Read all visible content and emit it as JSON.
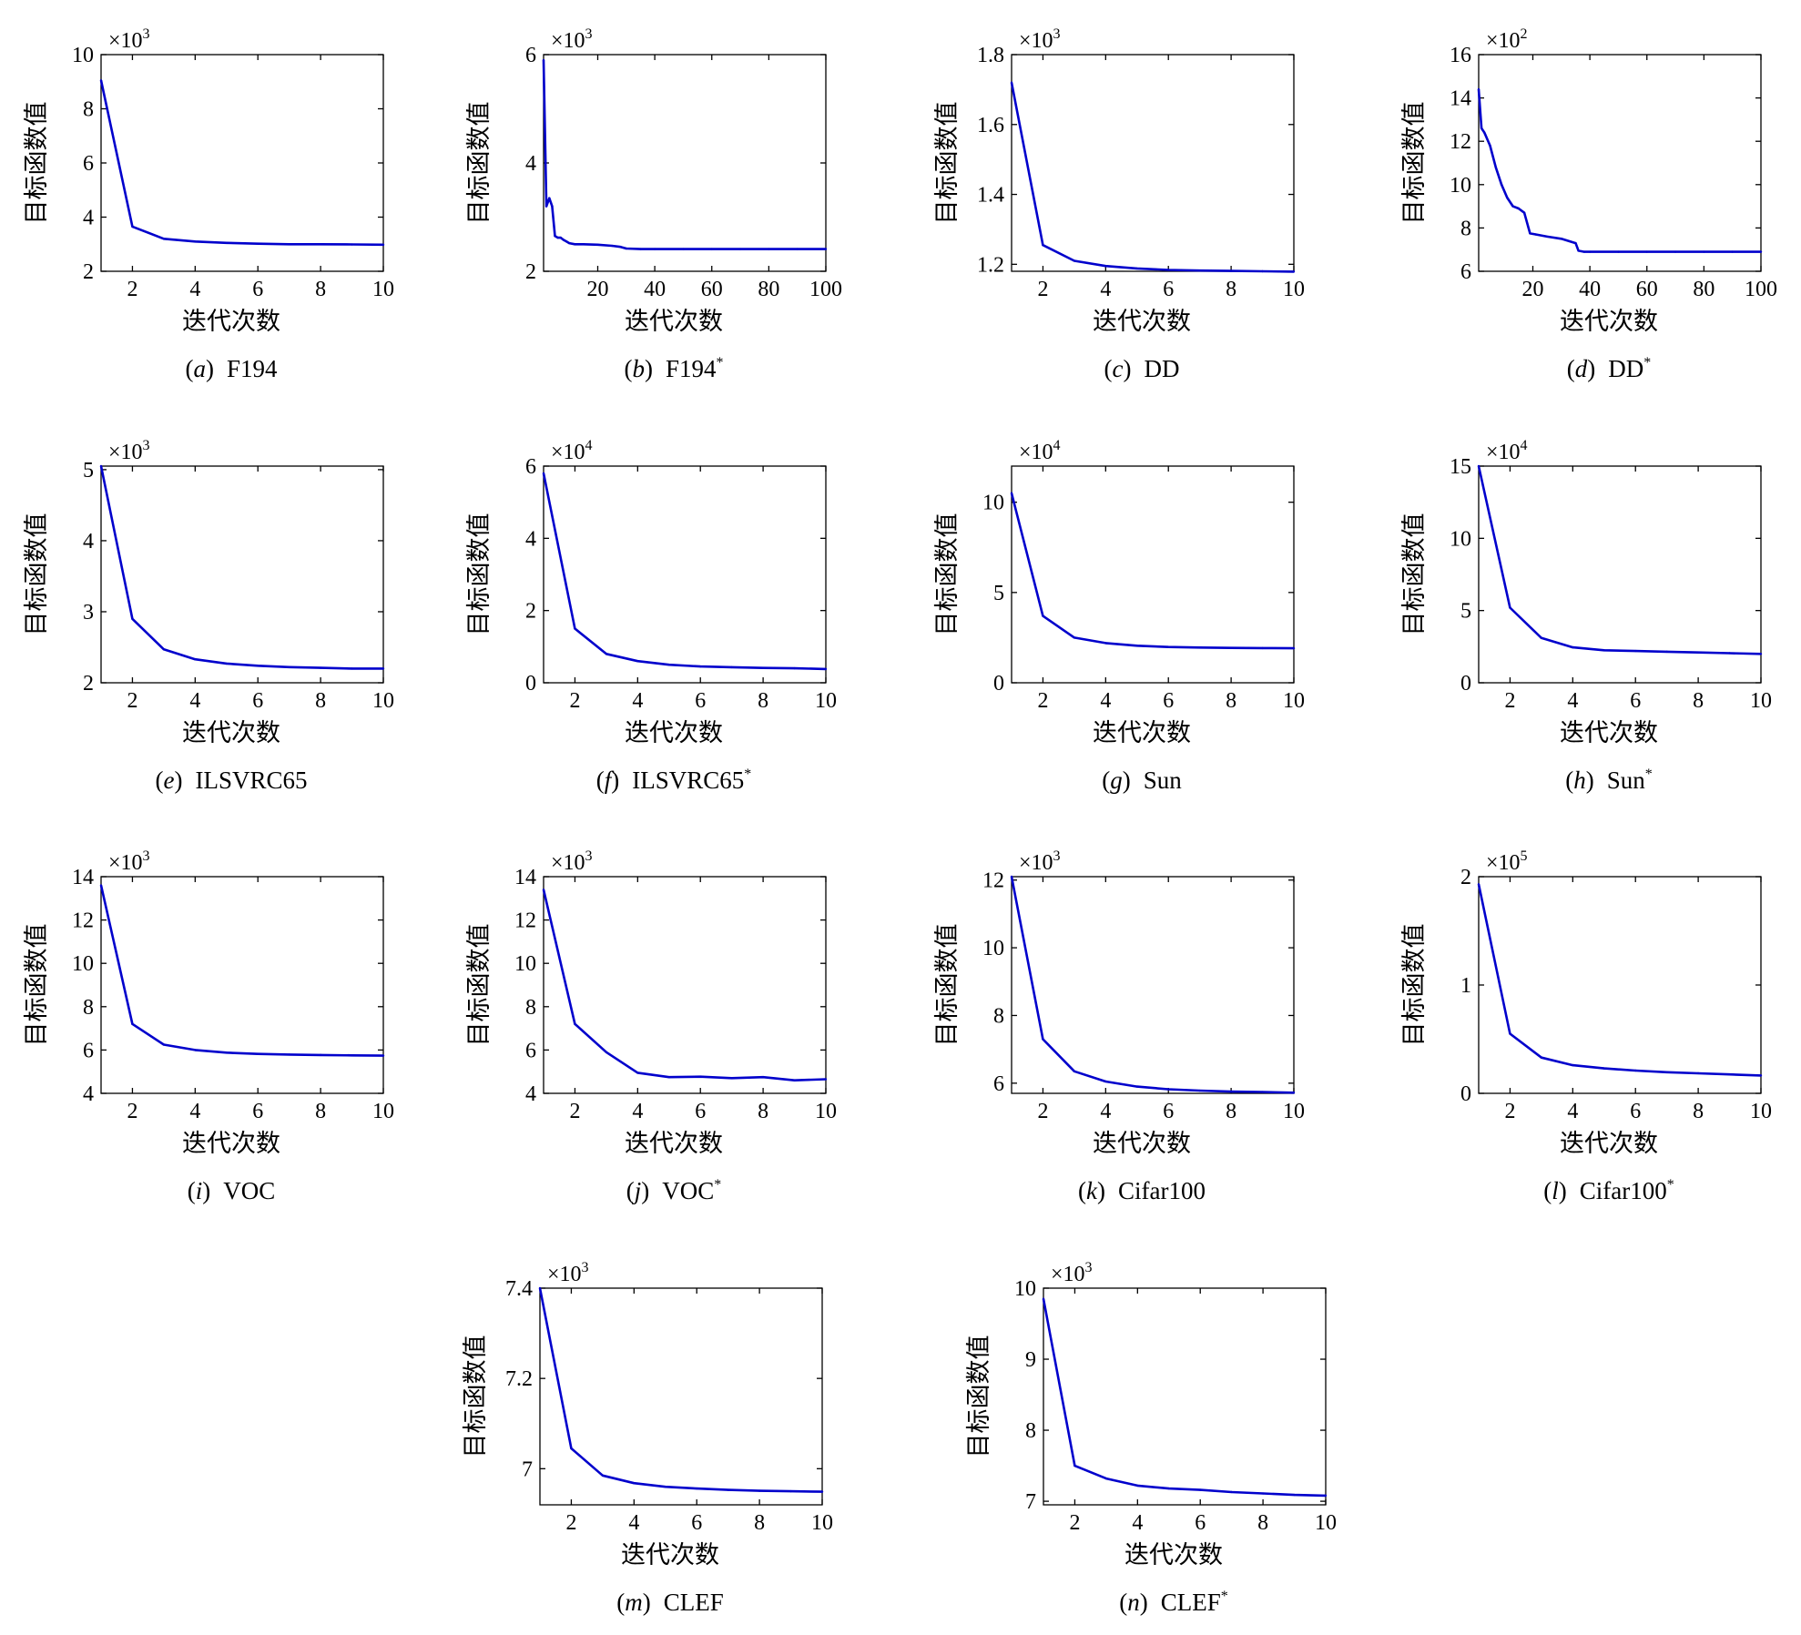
{
  "axis_labels": {
    "x": "迭代次数",
    "y": "目标函数值"
  },
  "caption_format": {
    "open": "(",
    "close": ")"
  },
  "exponent_symbol": "×10",
  "series_color": "#0000cc",
  "chart_data": [
    {
      "type": "line",
      "letter": "a",
      "dataset": "F194",
      "star": "",
      "exponent": "3",
      "xlim": [
        1,
        10
      ],
      "ylim": [
        2,
        10
      ],
      "xticks": [
        2,
        4,
        6,
        8,
        10
      ],
      "yticks": [
        2,
        4,
        6,
        8,
        10
      ],
      "x": [
        1,
        2,
        3,
        4,
        5,
        6,
        7,
        8,
        9,
        10
      ],
      "y": [
        9.05,
        3.65,
        3.2,
        3.1,
        3.05,
        3.02,
        3.0,
        3.0,
        2.99,
        2.98
      ]
    },
    {
      "type": "line",
      "letter": "b",
      "dataset": "F194",
      "star": "*",
      "exponent": "3",
      "xlim": [
        1,
        100
      ],
      "ylim": [
        2,
        6
      ],
      "xticks": [
        20,
        40,
        60,
        80,
        100
      ],
      "yticks": [
        2,
        4,
        6
      ],
      "x": [
        1,
        2,
        3,
        4,
        5,
        6,
        7,
        8,
        9,
        10,
        12,
        15,
        20,
        25,
        28,
        30,
        35,
        40,
        50,
        60,
        70,
        80,
        90,
        100
      ],
      "y": [
        5.9,
        3.2,
        3.35,
        3.2,
        2.65,
        2.62,
        2.62,
        2.58,
        2.55,
        2.52,
        2.5,
        2.5,
        2.49,
        2.47,
        2.45,
        2.42,
        2.41,
        2.41,
        2.41,
        2.41,
        2.41,
        2.41,
        2.41,
        2.41
      ]
    },
    {
      "type": "line",
      "letter": "c",
      "dataset": "DD",
      "star": "",
      "exponent": "3",
      "xlim": [
        1,
        10
      ],
      "ylim": [
        1.18,
        1.8
      ],
      "xticks": [
        2,
        4,
        6,
        8,
        10
      ],
      "yticks": [
        1.2,
        1.4,
        1.6,
        1.8
      ],
      "x": [
        1,
        2,
        3,
        4,
        5,
        6,
        7,
        8,
        9,
        10
      ],
      "y": [
        1.72,
        1.255,
        1.21,
        1.195,
        1.188,
        1.184,
        1.182,
        1.181,
        1.18,
        1.179
      ]
    },
    {
      "type": "line",
      "letter": "d",
      "dataset": "DD",
      "star": "*",
      "exponent": "2",
      "xlim": [
        1,
        100
      ],
      "ylim": [
        6,
        16
      ],
      "xticks": [
        20,
        40,
        60,
        80,
        100
      ],
      "yticks": [
        6,
        8,
        10,
        12,
        14,
        16
      ],
      "x": [
        1,
        2,
        3,
        5,
        7,
        9,
        11,
        13,
        15,
        17,
        19,
        21,
        25,
        30,
        35,
        36,
        38,
        40,
        50,
        60,
        70,
        80,
        90,
        100
      ],
      "y": [
        14.4,
        12.6,
        12.4,
        11.8,
        10.8,
        10.0,
        9.4,
        9.0,
        8.9,
        8.7,
        7.75,
        7.7,
        7.6,
        7.5,
        7.3,
        6.95,
        6.9,
        6.9,
        6.9,
        6.9,
        6.9,
        6.9,
        6.9,
        6.9
      ]
    },
    {
      "type": "line",
      "letter": "e",
      "dataset": "ILSVRC65",
      "star": "",
      "exponent": "3",
      "xlim": [
        1,
        10
      ],
      "ylim": [
        2,
        5.05
      ],
      "xticks": [
        2,
        4,
        6,
        8,
        10
      ],
      "yticks": [
        2,
        3,
        4,
        5
      ],
      "x": [
        1,
        2,
        3,
        4,
        5,
        6,
        7,
        8,
        9,
        10
      ],
      "y": [
        5.05,
        2.9,
        2.47,
        2.33,
        2.27,
        2.24,
        2.22,
        2.21,
        2.2,
        2.2
      ]
    },
    {
      "type": "line",
      "letter": "f",
      "dataset": "ILSVRC65",
      "star": "*",
      "exponent": "4",
      "xlim": [
        1,
        10
      ],
      "ylim": [
        0,
        6
      ],
      "xticks": [
        2,
        4,
        6,
        8,
        10
      ],
      "yticks": [
        0,
        2,
        4,
        6
      ],
      "x": [
        1,
        2,
        3,
        4,
        5,
        6,
        7,
        8,
        9,
        10
      ],
      "y": [
        5.8,
        1.5,
        0.8,
        0.6,
        0.5,
        0.45,
        0.43,
        0.41,
        0.4,
        0.38
      ]
    },
    {
      "type": "line",
      "letter": "g",
      "dataset": "Sun",
      "star": "",
      "exponent": "4",
      "xlim": [
        1,
        10
      ],
      "ylim": [
        0,
        12
      ],
      "xticks": [
        2,
        4,
        6,
        8,
        10
      ],
      "yticks": [
        0,
        5,
        10
      ],
      "x": [
        1,
        2,
        3,
        4,
        5,
        6,
        7,
        8,
        9,
        10
      ],
      "y": [
        10.5,
        3.7,
        2.5,
        2.2,
        2.05,
        1.98,
        1.95,
        1.93,
        1.92,
        1.91
      ]
    },
    {
      "type": "line",
      "letter": "h",
      "dataset": "Sun",
      "star": "*",
      "exponent": "4",
      "xlim": [
        1,
        10
      ],
      "ylim": [
        0,
        15
      ],
      "xticks": [
        2,
        4,
        6,
        8,
        10
      ],
      "yticks": [
        0,
        5,
        10,
        15
      ],
      "x": [
        1,
        2,
        3,
        4,
        5,
        6,
        7,
        8,
        9,
        10
      ],
      "y": [
        15,
        5.2,
        3.1,
        2.45,
        2.25,
        2.2,
        2.15,
        2.1,
        2.05,
        2.0
      ]
    },
    {
      "type": "line",
      "letter": "i",
      "dataset": "VOC",
      "star": "",
      "exponent": "3",
      "xlim": [
        1,
        10
      ],
      "ylim": [
        4,
        14
      ],
      "xticks": [
        2,
        4,
        6,
        8,
        10
      ],
      "yticks": [
        4,
        6,
        8,
        10,
        12,
        14
      ],
      "x": [
        1,
        2,
        3,
        4,
        5,
        6,
        7,
        8,
        9,
        10
      ],
      "y": [
        13.6,
        7.2,
        6.25,
        6.0,
        5.88,
        5.82,
        5.79,
        5.77,
        5.75,
        5.74
      ]
    },
    {
      "type": "line",
      "letter": "j",
      "dataset": "VOC",
      "star": "*",
      "exponent": "3",
      "xlim": [
        1,
        10
      ],
      "ylim": [
        4,
        14
      ],
      "xticks": [
        2,
        4,
        6,
        8,
        10
      ],
      "yticks": [
        4,
        6,
        8,
        10,
        12,
        14
      ],
      "x": [
        1,
        2,
        3,
        4,
        5,
        6,
        7,
        8,
        9,
        10
      ],
      "y": [
        13.4,
        7.2,
        5.9,
        4.95,
        4.75,
        4.77,
        4.7,
        4.75,
        4.6,
        4.65
      ]
    },
    {
      "type": "line",
      "letter": "k",
      "dataset": "Cifar100",
      "star": "",
      "exponent": "3",
      "xlim": [
        1,
        10
      ],
      "ylim": [
        5.7,
        12.1
      ],
      "xticks": [
        2,
        4,
        6,
        8,
        10
      ],
      "yticks": [
        6,
        8,
        10,
        12
      ],
      "x": [
        1,
        2,
        3,
        4,
        5,
        6,
        7,
        8,
        9,
        10
      ],
      "y": [
        12.1,
        7.3,
        6.35,
        6.05,
        5.9,
        5.82,
        5.78,
        5.75,
        5.74,
        5.72
      ]
    },
    {
      "type": "line",
      "letter": "l",
      "dataset": "Cifar100",
      "star": "*",
      "exponent": "5",
      "xlim": [
        1,
        10
      ],
      "ylim": [
        0,
        2
      ],
      "xticks": [
        2,
        4,
        6,
        8,
        10
      ],
      "yticks": [
        0,
        1,
        2
      ],
      "x": [
        1,
        2,
        3,
        4,
        5,
        6,
        7,
        8,
        9,
        10
      ],
      "y": [
        1.93,
        0.55,
        0.33,
        0.26,
        0.23,
        0.21,
        0.195,
        0.185,
        0.175,
        0.165
      ]
    },
    {
      "type": "line",
      "letter": "m",
      "dataset": "CLEF",
      "star": "",
      "exponent": "3",
      "xlim": [
        1,
        10
      ],
      "ylim": [
        6.92,
        7.4
      ],
      "xticks": [
        2,
        4,
        6,
        8,
        10
      ],
      "yticks": [
        7,
        7.2,
        7.4
      ],
      "x": [
        1,
        2,
        3,
        4,
        5,
        6,
        7,
        8,
        9,
        10
      ],
      "y": [
        7.4,
        7.045,
        6.985,
        6.968,
        6.96,
        6.956,
        6.953,
        6.951,
        6.95,
        6.949
      ]
    },
    {
      "type": "line",
      "letter": "n",
      "dataset": "CLEF",
      "star": "*",
      "exponent": "3",
      "xlim": [
        1,
        10
      ],
      "ylim": [
        6.95,
        10
      ],
      "xticks": [
        2,
        4,
        6,
        8,
        10
      ],
      "yticks": [
        7,
        8,
        9,
        10
      ],
      "x": [
        1,
        2,
        3,
        4,
        5,
        6,
        7,
        8,
        9,
        10
      ],
      "y": [
        9.85,
        7.5,
        7.32,
        7.22,
        7.18,
        7.16,
        7.13,
        7.11,
        7.09,
        7.08
      ]
    }
  ]
}
